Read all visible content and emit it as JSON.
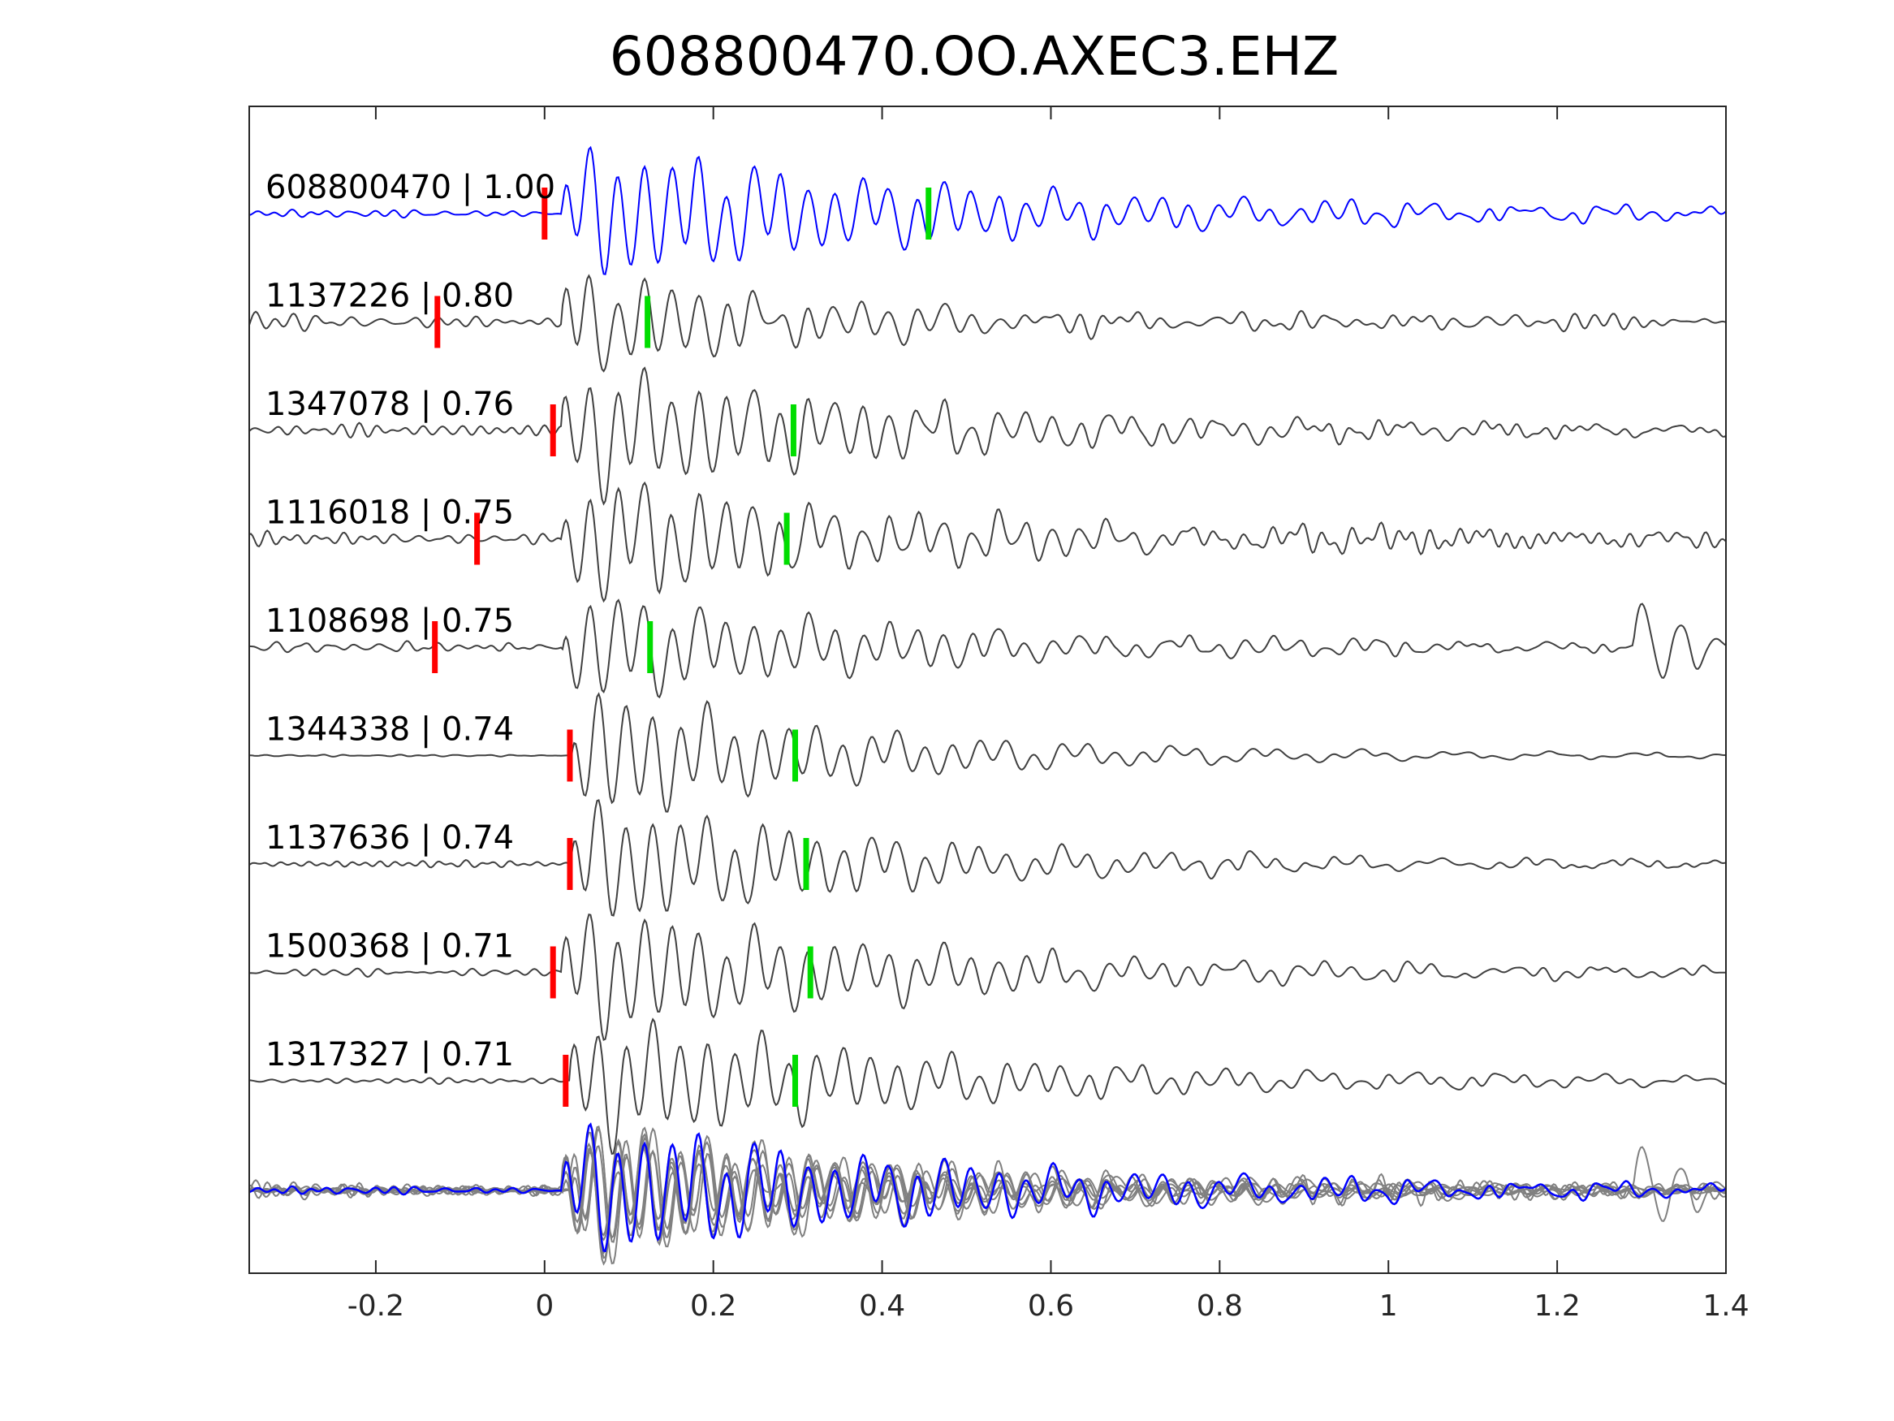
{
  "chart_data": {
    "type": "line",
    "title": "608800470.OO.AXEC3.EHZ",
    "xlabel": "",
    "ylabel": "",
    "xlim": [
      -0.35,
      1.4
    ],
    "xticks": [
      -0.2,
      0,
      0.2,
      0.4,
      0.6,
      0.8,
      1,
      1.2,
      1.4
    ],
    "xtick_labels": [
      "-0.2",
      "0",
      "0.2",
      "0.4",
      "0.6",
      "0.8",
      "1",
      "1.2",
      "1.4"
    ],
    "grid": false,
    "colors": {
      "reference": "#0000ff",
      "match": "#404040",
      "overlay": "#808080",
      "p_pick": "#ff0000",
      "s_pick": "#00dd00",
      "axes": "#262626"
    },
    "series": [
      {
        "name": "608800470 | 1.00",
        "p_pick": 0.0,
        "s_pick": 0.455,
        "onset": 0.02,
        "amp": 1.0,
        "noise": 0.08,
        "coda": 0.45,
        "late_event": null
      },
      {
        "name": "1137226 | 0.80",
        "p_pick": -0.127,
        "s_pick": 0.122,
        "onset": 0.02,
        "amp": 0.75,
        "noise": 0.12,
        "coda": 0.3,
        "late_event": null
      },
      {
        "name": "1347078 | 0.76",
        "p_pick": 0.01,
        "s_pick": 0.295,
        "onset": 0.02,
        "amp": 0.95,
        "noise": 0.1,
        "coda": 0.4,
        "late_event": null
      },
      {
        "name": "1116018 | 0.75",
        "p_pick": -0.08,
        "s_pick": 0.287,
        "onset": 0.02,
        "amp": 0.9,
        "noise": 0.14,
        "coda": 0.4,
        "late_event": null
      },
      {
        "name": "1108698 | 0.75",
        "p_pick": -0.13,
        "s_pick": 0.125,
        "onset": 0.02,
        "amp": 0.85,
        "noise": 0.12,
        "coda": 0.35,
        "late_event": 1.29
      },
      {
        "name": "1344338 | 0.74",
        "p_pick": 0.03,
        "s_pick": 0.297,
        "onset": 0.03,
        "amp": 1.0,
        "noise": 0.02,
        "coda": 0.3,
        "late_event": null
      },
      {
        "name": "1137636 | 0.74",
        "p_pick": 0.03,
        "s_pick": 0.31,
        "onset": 0.03,
        "amp": 0.95,
        "noise": 0.08,
        "coda": 0.35,
        "late_event": null
      },
      {
        "name": "1500368 | 0.71",
        "p_pick": 0.01,
        "s_pick": 0.315,
        "onset": 0.02,
        "amp": 0.95,
        "noise": 0.08,
        "coda": 0.4,
        "late_event": null
      },
      {
        "name": "1317327 | 0.71",
        "p_pick": 0.025,
        "s_pick": 0.297,
        "onset": 0.03,
        "amp": 0.95,
        "noise": 0.05,
        "coda": 0.4,
        "late_event": null
      }
    ]
  }
}
